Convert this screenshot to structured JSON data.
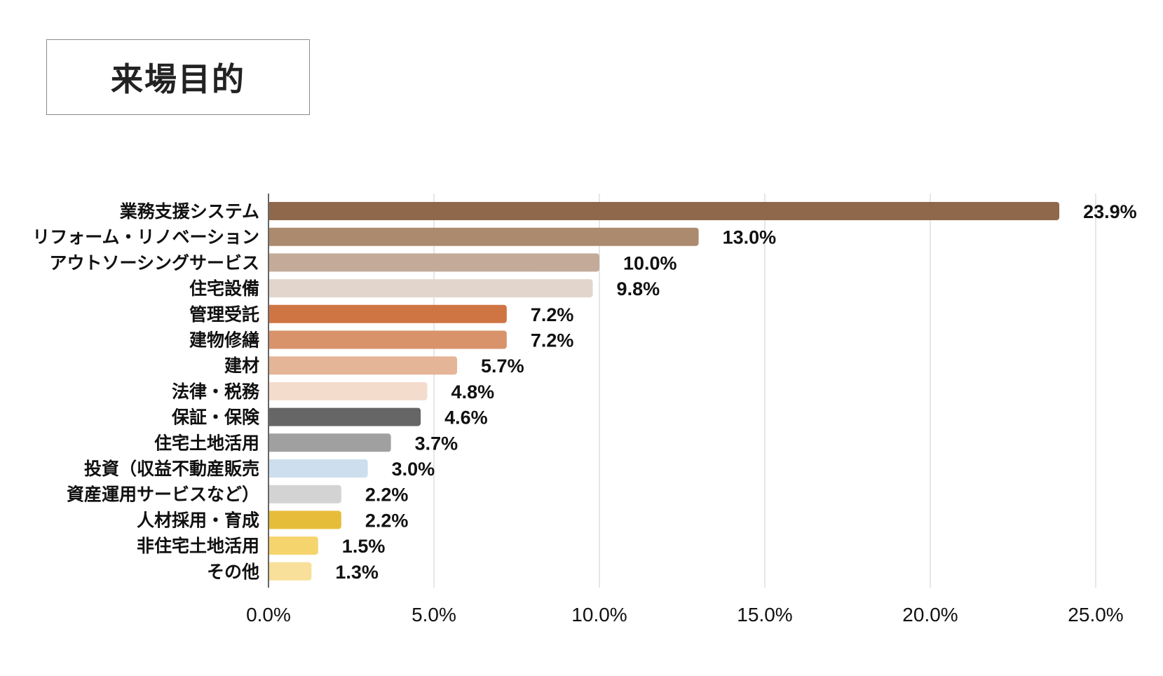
{
  "chart_data": {
    "type": "bar",
    "orientation": "horizontal",
    "title": "来場目的",
    "categories": [
      "業務支援システム",
      "リフォーム・リノベーション",
      "アウトソーシングサービス",
      "住宅設備",
      "管理受託",
      "建物修繕",
      "建材",
      "法律・税務",
      "保証・保険",
      "住宅土地活用",
      "投資（収益不動産販売",
      "資産運用サービスなど）",
      "人材採用・育成",
      "非住宅土地活用",
      "その他"
    ],
    "values": [
      23.9,
      13.0,
      10.0,
      9.8,
      7.2,
      7.2,
      5.7,
      4.8,
      4.6,
      3.7,
      3.0,
      2.2,
      2.2,
      1.5,
      1.3
    ],
    "value_labels": [
      "23.9%",
      "13.0%",
      "10.0%",
      "9.8%",
      "7.2%",
      "7.2%",
      "5.7%",
      "4.8%",
      "4.6%",
      "3.7%",
      "3.0%",
      "2.2%",
      "2.2%",
      "1.5%",
      "1.3%"
    ],
    "colors": [
      "#8f684b",
      "#ac8a6e",
      "#c4ab99",
      "#e2d6cc",
      "#cf7543",
      "#d8936b",
      "#e5b597",
      "#f4dccd",
      "#666666",
      "#a0a0a0",
      "#cddfee",
      "#d3d3d3",
      "#e6bd3a",
      "#f6d46d",
      "#f8e09a"
    ],
    "xlim": [
      0,
      25
    ],
    "xticks": [
      0,
      5,
      10,
      15,
      20,
      25
    ],
    "xtick_labels": [
      "0.0%",
      "5.0%",
      "10.0%",
      "15.0%",
      "20.0%",
      "25.0%"
    ],
    "grid": true,
    "xlabel": "",
    "ylabel": ""
  }
}
